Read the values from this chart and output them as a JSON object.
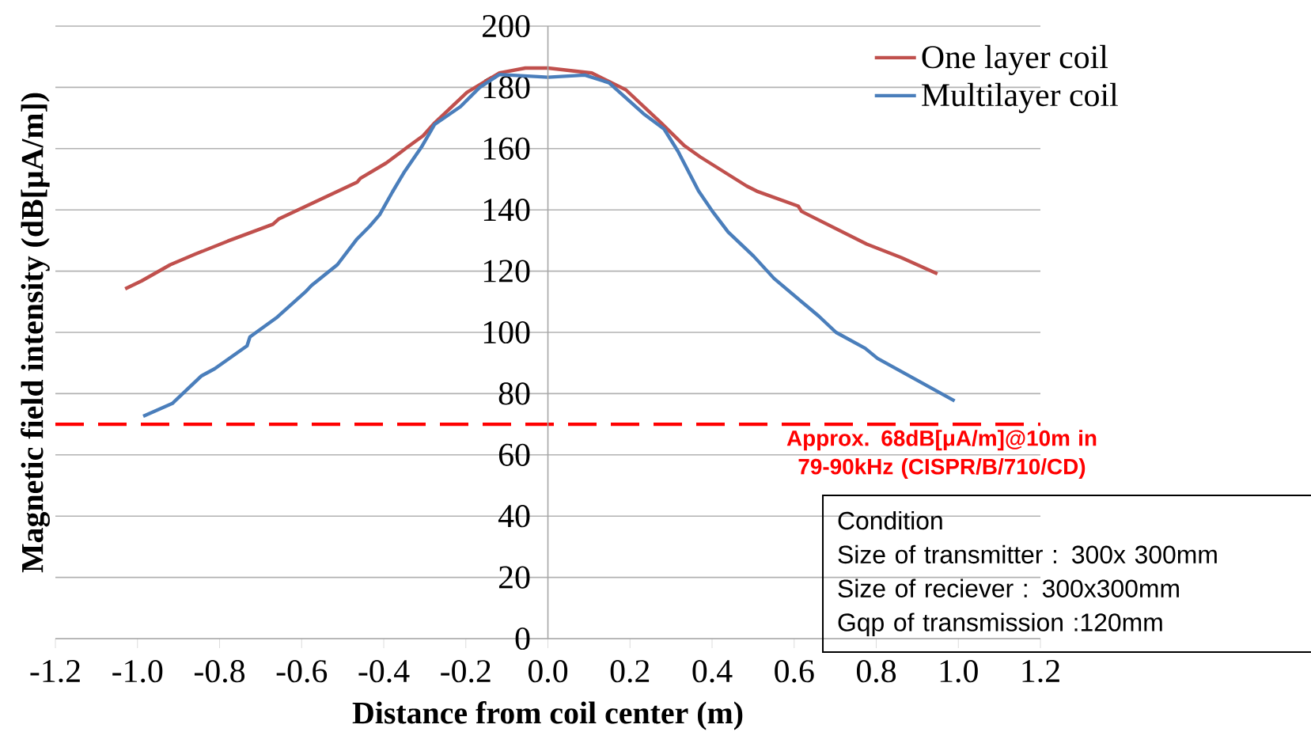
{
  "chart_data": {
    "type": "line",
    "xlabel": "Distance from coil center (m)",
    "ylabel": "Magnetic field intensity (dB[μA/m])",
    "xlim": [
      -1.2,
      1.2
    ],
    "xticks": [
      {
        "value": -1.2,
        "label": "-1.2"
      },
      {
        "value": -1.0,
        "label": "-1.0"
      },
      {
        "value": -0.8,
        "label": "-0.8"
      },
      {
        "value": -0.6,
        "label": "-0.6"
      },
      {
        "value": -0.4,
        "label": "-0.4"
      },
      {
        "value": -0.2,
        "label": "-0.2"
      },
      {
        "value": 0,
        "label": "0.0"
      },
      {
        "value": 0.2,
        "label": "0.2"
      },
      {
        "value": 0.4,
        "label": "0.4"
      },
      {
        "value": 0.6,
        "label": "0.6"
      },
      {
        "value": 0.8,
        "label": "0.8"
      },
      {
        "value": 1.0,
        "label": "1.0"
      },
      {
        "value": 1.2,
        "label": "1.2"
      }
    ],
    "ylim": [
      0,
      200
    ],
    "yticks": [
      0,
      20,
      40,
      60,
      80,
      100,
      120,
      140,
      160,
      180,
      200
    ],
    "grid": "y",
    "legend": "top right",
    "series": [
      {
        "name": "One layer coil",
        "color": "#c0504d",
        "x": [
          -1.03,
          -0.99,
          -0.92,
          -0.86,
          -0.78,
          -0.67,
          -0.655,
          -0.465,
          -0.457,
          -0.394,
          -0.347,
          -0.304,
          -0.276,
          -0.197,
          -0.118,
          -0.055,
          0,
          0.107,
          0.19,
          0.275,
          0.333,
          0.371,
          0.484,
          0.509,
          0.61,
          0.618,
          0.777,
          0.861,
          0.949
        ],
        "values": [
          114.2,
          116.8,
          122.1,
          125.5,
          129.8,
          135.3,
          137.1,
          149,
          150.3,
          155.3,
          160,
          164.2,
          168.4,
          178.4,
          184.7,
          186.3,
          186.3,
          184.7,
          179.2,
          168.5,
          160.9,
          157.3,
          147.8,
          146.1,
          141.2,
          139.5,
          128.8,
          124.4,
          119.1
        ]
      },
      {
        "name": "Multilayer coil",
        "color": "#4a7ebb",
        "x": [
          -0.986,
          -0.915,
          -0.844,
          -0.812,
          -0.733,
          -0.726,
          -0.662,
          -0.591,
          -0.576,
          -0.513,
          -0.465,
          -0.434,
          -0.41,
          -0.379,
          -0.351,
          -0.308,
          -0.276,
          -0.213,
          -0.166,
          -0.118,
          -0.024,
          0,
          0.09,
          0.149,
          0.233,
          0.283,
          0.317,
          0.367,
          0.401,
          0.439,
          0.501,
          0.551,
          0.66,
          0.702,
          0.773,
          0.803,
          0.991
        ],
        "values": [
          72.6,
          76.8,
          85.8,
          88.1,
          95.6,
          98.5,
          104.7,
          113.2,
          115.3,
          122.1,
          130.5,
          134.7,
          138.4,
          145.8,
          152.1,
          160.5,
          167.9,
          173.7,
          180,
          184.2,
          183.5,
          183.3,
          184,
          181.5,
          171.4,
          166.4,
          159.1,
          146.2,
          139.5,
          132.8,
          124.9,
          117.6,
          105.3,
          100,
          94.8,
          91.5,
          77.6
        ]
      }
    ],
    "ref_lines": [
      {
        "axis": "y",
        "value": 70,
        "label": "Approx. 68dB[μA/m]@10m in 79-90kHz (CISPR/B/710/CD)",
        "color": "#ff0000",
        "line_style": "dashed"
      }
    ],
    "annotations": [
      "Condition",
      "Size of transmitter : 300x 300mm",
      "Size of reciever : 300x300mm",
      "Gqp of transmission :120mm"
    ]
  }
}
